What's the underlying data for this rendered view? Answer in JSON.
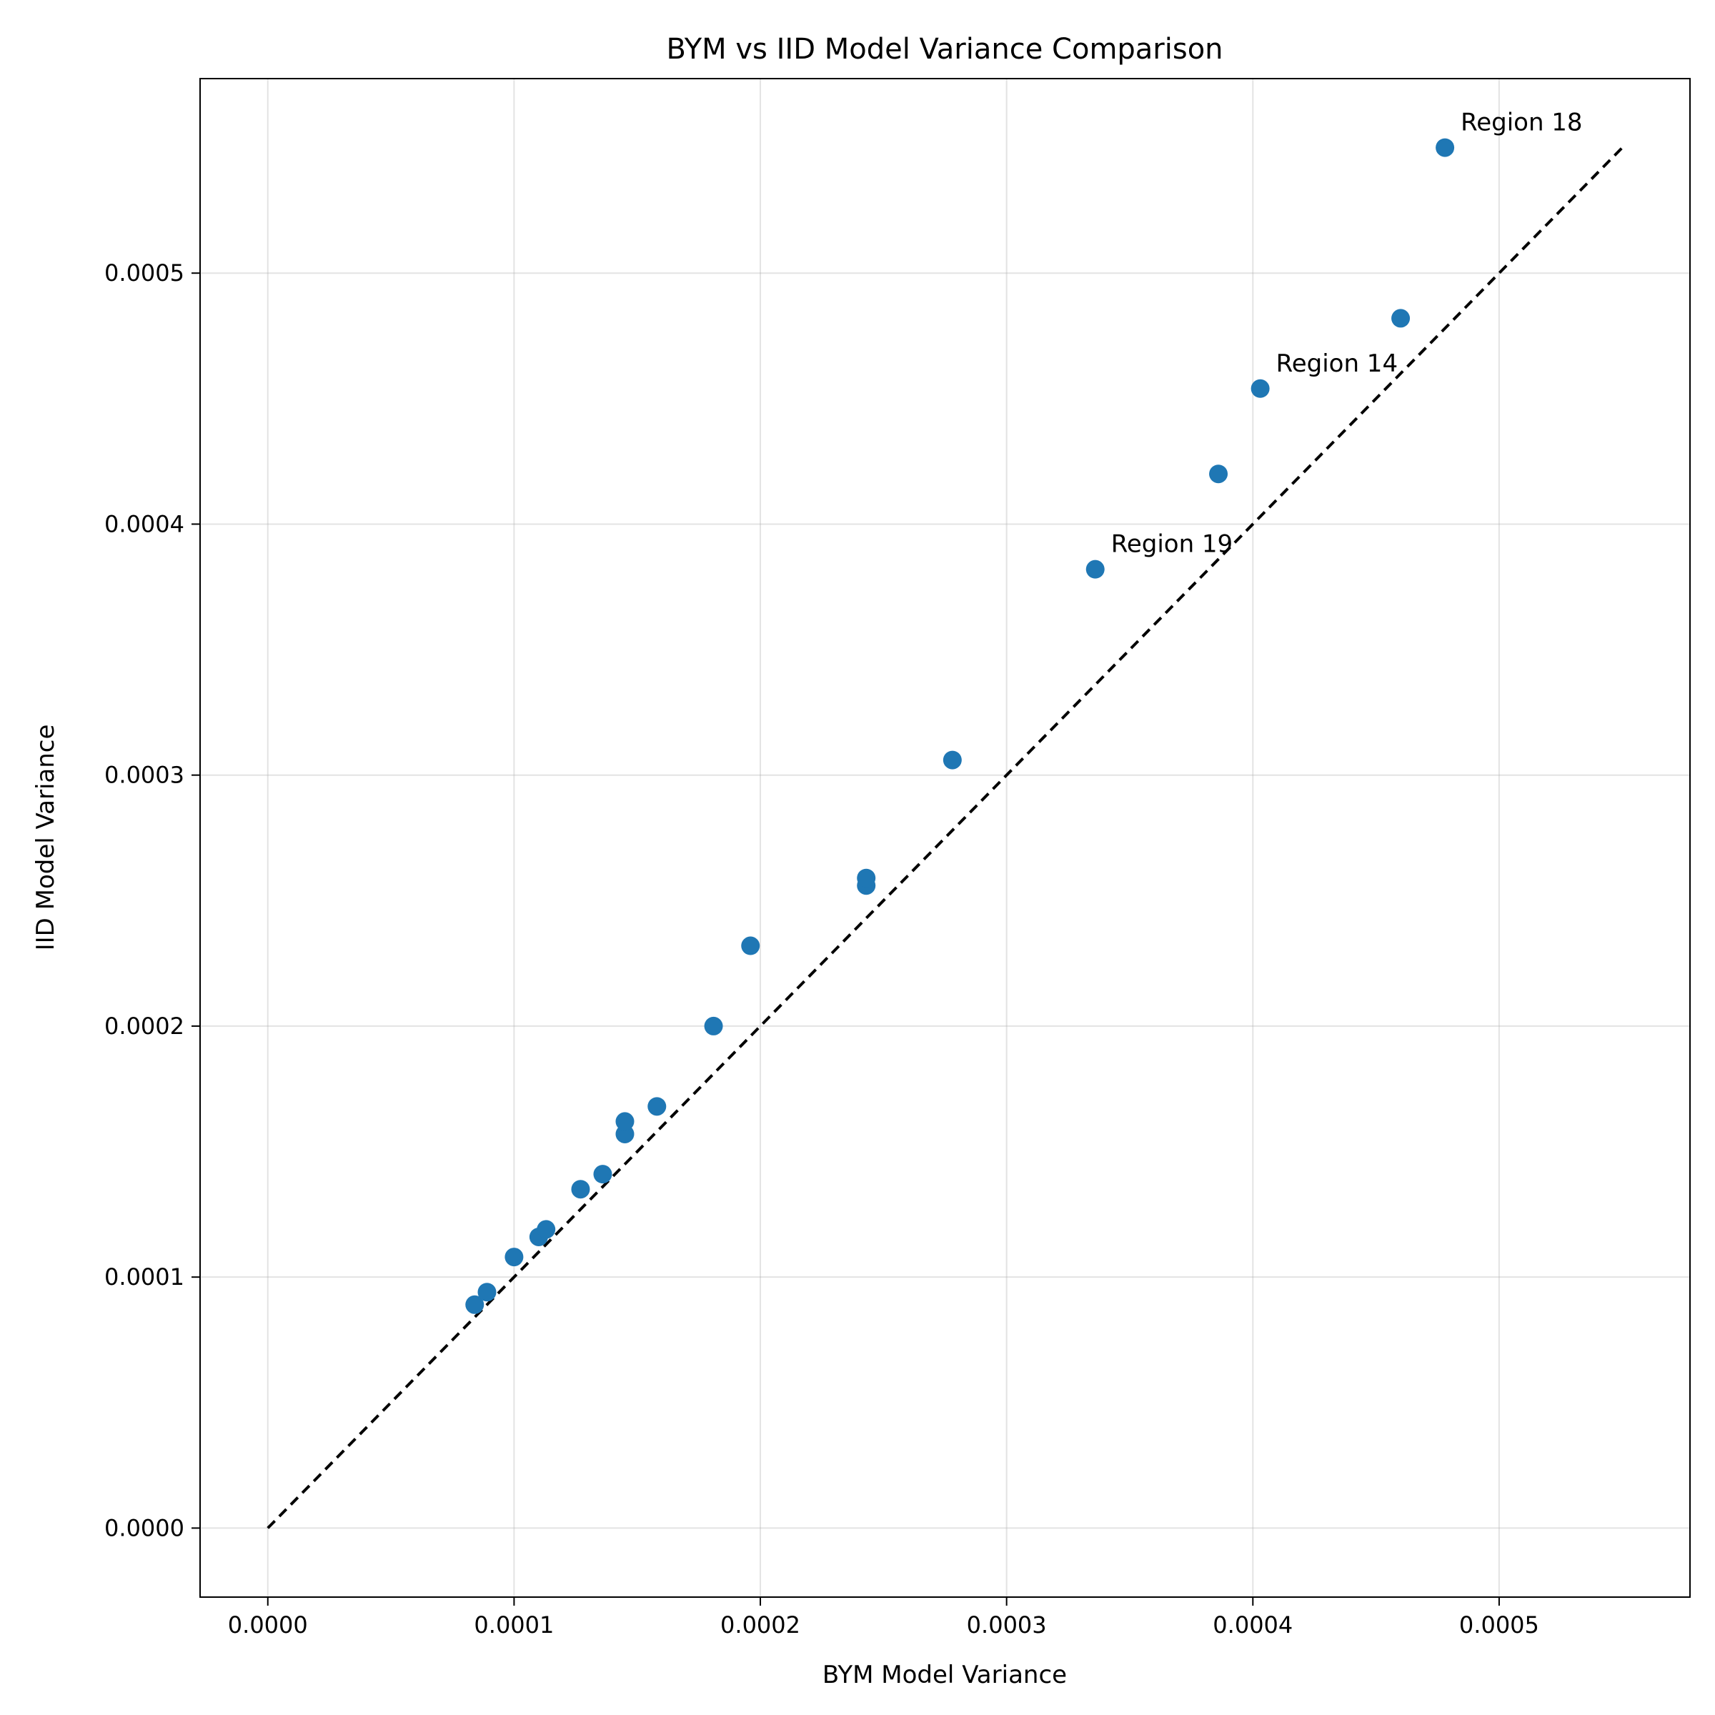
{
  "chart_data": {
    "type": "scatter",
    "title": "BYM vs IID Model Variance Comparison",
    "xlabel": "BYM Model Variance",
    "ylabel": "IID Model Variance",
    "xlim": [
      -2.75e-05,
      0.0005775
    ],
    "ylim": [
      -2.75e-05,
      0.0005775
    ],
    "xticks": [
      0.0,
      0.0001,
      0.0002,
      0.0003,
      0.0004,
      0.0005
    ],
    "yticks": [
      0.0,
      0.0001,
      0.0002,
      0.0003,
      0.0004,
      0.0005
    ],
    "xtick_labels": [
      "0.0000",
      "0.0001",
      "0.0002",
      "0.0003",
      "0.0004",
      "0.0005"
    ],
    "ytick_labels": [
      "0.0000",
      "0.0001",
      "0.0002",
      "0.0003",
      "0.0004",
      "0.0005"
    ],
    "grid": true,
    "marker_color": "#1f77b4",
    "reference_line": {
      "x": [
        0.0,
        0.00055
      ],
      "y": [
        0.0,
        0.00055
      ],
      "style": "dashed",
      "color": "#000000"
    },
    "points": [
      {
        "x": 8.4e-05,
        "y": 8.9e-05
      },
      {
        "x": 8.9e-05,
        "y": 9.4e-05
      },
      {
        "x": 0.0001,
        "y": 0.000108
      },
      {
        "x": 0.00011,
        "y": 0.000116
      },
      {
        "x": 0.000113,
        "y": 0.000119
      },
      {
        "x": 0.000127,
        "y": 0.000135
      },
      {
        "x": 0.000136,
        "y": 0.000141
      },
      {
        "x": 0.000145,
        "y": 0.000157
      },
      {
        "x": 0.000145,
        "y": 0.000162
      },
      {
        "x": 0.000158,
        "y": 0.000168
      },
      {
        "x": 0.000181,
        "y": 0.0002
      },
      {
        "x": 0.000196,
        "y": 0.000232
      },
      {
        "x": 0.000243,
        "y": 0.000256
      },
      {
        "x": 0.000243,
        "y": 0.000259
      },
      {
        "x": 0.000278,
        "y": 0.000306
      },
      {
        "x": 0.000336,
        "y": 0.000382,
        "label": "Region 19"
      },
      {
        "x": 0.000386,
        "y": 0.00042
      },
      {
        "x": 0.000403,
        "y": 0.000454,
        "label": "Region 14"
      },
      {
        "x": 0.00046,
        "y": 0.000482
      },
      {
        "x": 0.000478,
        "y": 0.00055,
        "label": "Region 18"
      }
    ]
  }
}
